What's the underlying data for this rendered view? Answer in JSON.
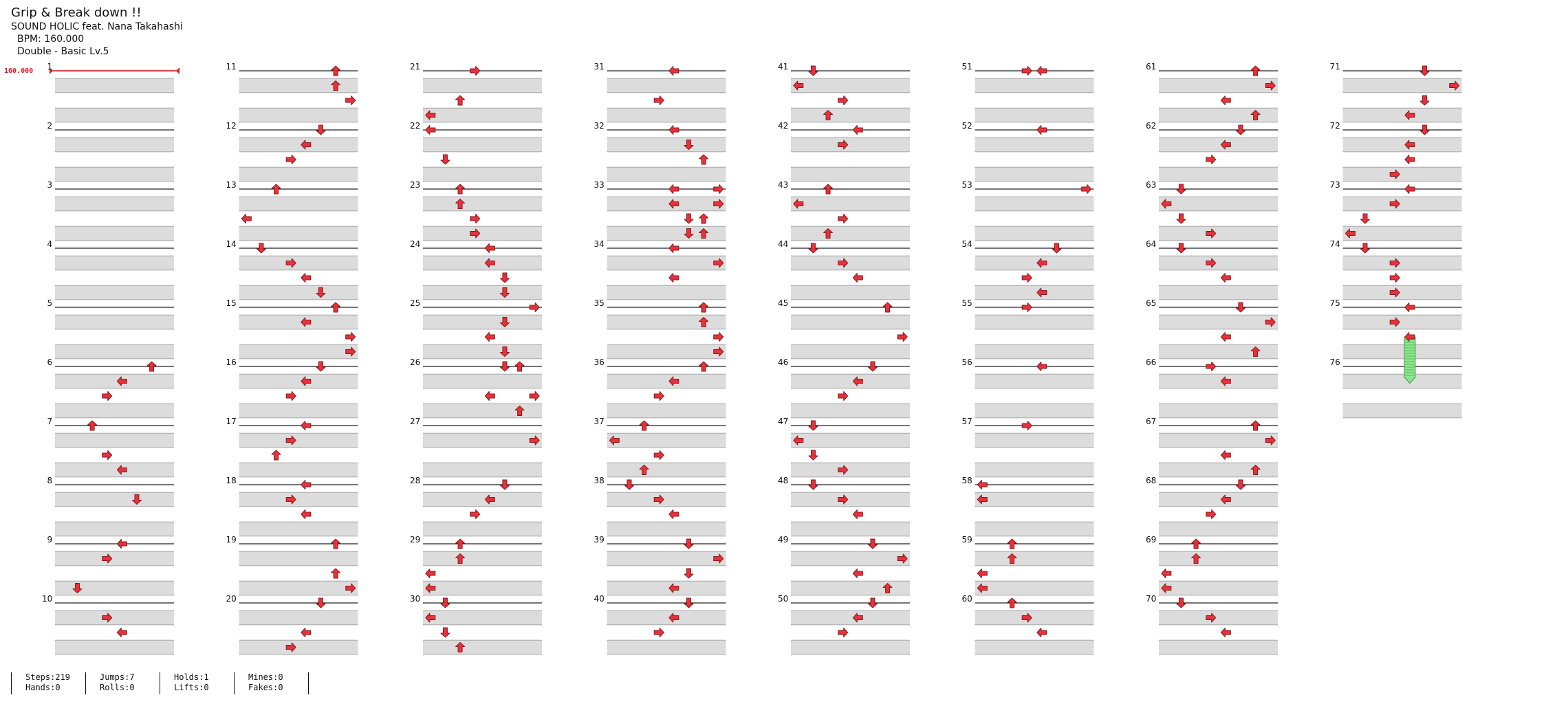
{
  "song": {
    "title": "Grip & Break down !!",
    "artist": "SOUND HOLIC feat. Nana Takahashi",
    "bpm_text": "BPM: 160.000",
    "chart_type": "Double - Basic  Lv.5"
  },
  "bpm_marker": "160.000",
  "colors": {
    "arrow": "#e5323b",
    "arrow_outline": "#8a1a1f",
    "shade": "#dcdcdc",
    "hold": "#8ee68e",
    "hold_outline": "#3a9a3a",
    "bpm": "#e31b23"
  },
  "lanes": 8,
  "measure_numbers": [
    "1",
    "2",
    "3",
    "4",
    "5",
    "6",
    "7",
    "8",
    "9",
    "10",
    "11",
    "12",
    "13",
    "14",
    "15",
    "16",
    "17",
    "18",
    "19",
    "20",
    "21",
    "22",
    "23",
    "24",
    "25",
    "26",
    "27",
    "28",
    "29",
    "30",
    "31",
    "32",
    "33",
    "34",
    "35",
    "36",
    "37",
    "38",
    "39",
    "40",
    "41",
    "42",
    "43",
    "44",
    "45",
    "46",
    "47",
    "48",
    "49",
    "50",
    "51",
    "52",
    "53",
    "54",
    "55",
    "56",
    "57",
    "58",
    "59",
    "60",
    "61",
    "62",
    "63",
    "64",
    "65",
    "66",
    "67",
    "68",
    "69",
    "70",
    "71",
    "72",
    "73",
    "74",
    "75",
    "76"
  ],
  "notes": [
    {
      "m": 1,
      "r": 0,
      "l": []
    },
    {
      "m": 6,
      "r": 0,
      "l": [
        6
      ]
    },
    {
      "m": 6,
      "r": 1,
      "l": [
        4
      ]
    },
    {
      "m": 6,
      "r": 2,
      "l": [
        3
      ]
    },
    {
      "m": 7,
      "r": 0,
      "l": [
        2
      ]
    },
    {
      "m": 7,
      "r": 2,
      "l": [
        3
      ]
    },
    {
      "m": 7,
      "r": 3,
      "l": [
        4
      ]
    },
    {
      "m": 8,
      "r": 1,
      "l": [
        5
      ]
    },
    {
      "m": 9,
      "r": 0,
      "l": [
        4
      ]
    },
    {
      "m": 9,
      "r": 1,
      "l": [
        3
      ]
    },
    {
      "m": 9,
      "r": 3,
      "l": [
        1
      ]
    },
    {
      "m": 10,
      "r": 1,
      "l": [
        3
      ]
    },
    {
      "m": 10,
      "r": 2,
      "l": [
        4
      ]
    },
    {
      "m": 11,
      "r": 0,
      "l": [
        6
      ]
    },
    {
      "m": 11,
      "r": 1,
      "l": [
        6
      ]
    },
    {
      "m": 11,
      "r": 2,
      "l": [
        7
      ]
    },
    {
      "m": 12,
      "r": 0,
      "l": [
        5
      ]
    },
    {
      "m": 12,
      "r": 1,
      "l": [
        4
      ]
    },
    {
      "m": 12,
      "r": 2,
      "l": [
        3
      ]
    },
    {
      "m": 13,
      "r": 0,
      "l": [
        2
      ]
    },
    {
      "m": 13,
      "r": 2,
      "l": [
        0
      ]
    },
    {
      "m": 14,
      "r": 0,
      "l": [
        1
      ]
    },
    {
      "m": 14,
      "r": 1,
      "l": [
        3
      ]
    },
    {
      "m": 14,
      "r": 2,
      "l": [
        4
      ]
    },
    {
      "m": 14,
      "r": 3,
      "l": [
        5
      ]
    },
    {
      "m": 15,
      "r": 0,
      "l": [
        6
      ]
    },
    {
      "m": 15,
      "r": 1,
      "l": [
        4
      ]
    },
    {
      "m": 15,
      "r": 2,
      "l": [
        7
      ]
    },
    {
      "m": 15,
      "r": 3,
      "l": [
        7
      ]
    },
    {
      "m": 16,
      "r": 0,
      "l": [
        5
      ]
    },
    {
      "m": 16,
      "r": 1,
      "l": [
        4
      ]
    },
    {
      "m": 16,
      "r": 2,
      "l": [
        3
      ]
    },
    {
      "m": 17,
      "r": 0,
      "l": [
        4
      ]
    },
    {
      "m": 17,
      "r": 1,
      "l": [
        3
      ]
    },
    {
      "m": 17,
      "r": 2,
      "l": [
        2
      ]
    },
    {
      "m": 18,
      "r": 0,
      "l": [
        4
      ]
    },
    {
      "m": 18,
      "r": 1,
      "l": [
        3
      ]
    },
    {
      "m": 18,
      "r": 2,
      "l": [
        4
      ]
    },
    {
      "m": 19,
      "r": 0,
      "l": [
        6
      ]
    },
    {
      "m": 19,
      "r": 2,
      "l": [
        6
      ]
    },
    {
      "m": 19,
      "r": 3,
      "l": [
        7
      ]
    },
    {
      "m": 20,
      "r": 0,
      "l": [
        5
      ]
    },
    {
      "m": 20,
      "r": 2,
      "l": [
        4
      ]
    },
    {
      "m": 20,
      "r": 3,
      "l": [
        3
      ]
    },
    {
      "m": 21,
      "r": 0,
      "l": [
        3
      ]
    },
    {
      "m": 21,
      "r": 2,
      "l": [
        2
      ]
    },
    {
      "m": 21,
      "r": 3,
      "l": [
        0
      ]
    },
    {
      "m": 22,
      "r": 0,
      "l": [
        0
      ]
    },
    {
      "m": 22,
      "r": 2,
      "l": [
        1
      ]
    },
    {
      "m": 23,
      "r": 0,
      "l": [
        2
      ]
    },
    {
      "m": 23,
      "r": 1,
      "l": [
        2
      ]
    },
    {
      "m": 23,
      "r": 2,
      "l": [
        3
      ]
    },
    {
      "m": 23,
      "r": 3,
      "l": [
        3
      ]
    },
    {
      "m": 24,
      "r": 0,
      "l": [
        4
      ]
    },
    {
      "m": 24,
      "r": 1,
      "l": [
        4
      ]
    },
    {
      "m": 24,
      "r": 2,
      "l": [
        5
      ]
    },
    {
      "m": 24,
      "r": 3,
      "l": [
        5
      ]
    },
    {
      "m": 25,
      "r": 0,
      "l": [
        7
      ]
    },
    {
      "m": 25,
      "r": 1,
      "l": [
        5
      ]
    },
    {
      "m": 25,
      "r": 2,
      "l": [
        4
      ]
    },
    {
      "m": 25,
      "r": 3,
      "l": [
        5
      ]
    },
    {
      "m": 26,
      "r": 0,
      "l": [
        5,
        6
      ]
    },
    {
      "m": 26,
      "r": 2,
      "l": [
        4,
        7
      ]
    },
    {
      "m": 26,
      "r": 3,
      "l": [
        6
      ]
    },
    {
      "m": 27,
      "r": 1,
      "l": [
        7
      ]
    },
    {
      "m": 28,
      "r": 0,
      "l": [
        5
      ]
    },
    {
      "m": 28,
      "r": 1,
      "l": [
        4
      ]
    },
    {
      "m": 28,
      "r": 2,
      "l": [
        3
      ]
    },
    {
      "m": 29,
      "r": 0,
      "l": [
        2
      ]
    },
    {
      "m": 29,
      "r": 1,
      "l": [
        2
      ]
    },
    {
      "m": 29,
      "r": 2,
      "l": [
        0
      ]
    },
    {
      "m": 29,
      "r": 3,
      "l": [
        0
      ]
    },
    {
      "m": 30,
      "r": 0,
      "l": [
        1
      ]
    },
    {
      "m": 30,
      "r": 1,
      "l": [
        0
      ]
    },
    {
      "m": 30,
      "r": 2,
      "l": [
        1
      ]
    },
    {
      "m": 30,
      "r": 3,
      "l": [
        2
      ]
    },
    {
      "m": 31,
      "r": 0,
      "l": [
        4
      ]
    },
    {
      "m": 31,
      "r": 2,
      "l": [
        3
      ]
    },
    {
      "m": 32,
      "r": 0,
      "l": [
        4
      ]
    },
    {
      "m": 32,
      "r": 1,
      "l": [
        5
      ]
    },
    {
      "m": 32,
      "r": 2,
      "l": [
        6
      ]
    },
    {
      "m": 33,
      "r": 0,
      "l": [
        4,
        7
      ]
    },
    {
      "m": 33,
      "r": 1,
      "l": [
        4,
        7
      ]
    },
    {
      "m": 33,
      "r": 2,
      "l": [
        5,
        6
      ]
    },
    {
      "m": 33,
      "r": 3,
      "l": [
        5,
        6
      ]
    },
    {
      "m": 34,
      "r": 0,
      "l": [
        4
      ]
    },
    {
      "m": 34,
      "r": 1,
      "l": [
        7
      ]
    },
    {
      "m": 34,
      "r": 2,
      "l": [
        4
      ]
    },
    {
      "m": 35,
      "r": 0,
      "l": [
        6
      ]
    },
    {
      "m": 35,
      "r": 1,
      "l": [
        6
      ]
    },
    {
      "m": 35,
      "r": 2,
      "l": [
        7
      ]
    },
    {
      "m": 35,
      "r": 3,
      "l": [
        7
      ]
    },
    {
      "m": 36,
      "r": 0,
      "l": [
        6
      ]
    },
    {
      "m": 36,
      "r": 1,
      "l": [
        4
      ]
    },
    {
      "m": 36,
      "r": 2,
      "l": [
        3
      ]
    },
    {
      "m": 37,
      "r": 0,
      "l": [
        2
      ]
    },
    {
      "m": 37,
      "r": 1,
      "l": [
        0
      ]
    },
    {
      "m": 37,
      "r": 2,
      "l": [
        3
      ]
    },
    {
      "m": 37,
      "r": 3,
      "l": [
        2
      ]
    },
    {
      "m": 38,
      "r": 0,
      "l": [
        1
      ]
    },
    {
      "m": 38,
      "r": 1,
      "l": [
        3
      ]
    },
    {
      "m": 38,
      "r": 2,
      "l": [
        4
      ]
    },
    {
      "m": 39,
      "r": 0,
      "l": [
        5
      ]
    },
    {
      "m": 39,
      "r": 1,
      "l": [
        7
      ]
    },
    {
      "m": 39,
      "r": 2,
      "l": [
        5
      ]
    },
    {
      "m": 39,
      "r": 3,
      "l": [
        4
      ]
    },
    {
      "m": 40,
      "r": 0,
      "l": [
        5
      ]
    },
    {
      "m": 40,
      "r": 1,
      "l": [
        4
      ]
    },
    {
      "m": 40,
      "r": 2,
      "l": [
        3
      ]
    },
    {
      "m": 41,
      "r": 0,
      "l": [
        1
      ]
    },
    {
      "m": 41,
      "r": 1,
      "l": [
        0
      ]
    },
    {
      "m": 41,
      "r": 2,
      "l": [
        3
      ]
    },
    {
      "m": 41,
      "r": 3,
      "l": [
        2
      ]
    },
    {
      "m": 42,
      "r": 0,
      "l": [
        4
      ]
    },
    {
      "m": 42,
      "r": 1,
      "l": [
        3
      ]
    },
    {
      "m": 43,
      "r": 0,
      "l": [
        2
      ]
    },
    {
      "m": 43,
      "r": 1,
      "l": [
        0
      ]
    },
    {
      "m": 43,
      "r": 2,
      "l": [
        3
      ]
    },
    {
      "m": 43,
      "r": 3,
      "l": [
        2
      ]
    },
    {
      "m": 44,
      "r": 0,
      "l": [
        1
      ]
    },
    {
      "m": 44,
      "r": 1,
      "l": [
        3
      ]
    },
    {
      "m": 44,
      "r": 2,
      "l": [
        4
      ]
    },
    {
      "m": 45,
      "r": 0,
      "l": [
        6
      ]
    },
    {
      "m": 45,
      "r": 2,
      "l": [
        7
      ]
    },
    {
      "m": 46,
      "r": 0,
      "l": [
        5
      ]
    },
    {
      "m": 46,
      "r": 1,
      "l": [
        4
      ]
    },
    {
      "m": 46,
      "r": 2,
      "l": [
        3
      ]
    },
    {
      "m": 47,
      "r": 0,
      "l": [
        1
      ]
    },
    {
      "m": 47,
      "r": 1,
      "l": [
        0
      ]
    },
    {
      "m": 47,
      "r": 2,
      "l": [
        1
      ]
    },
    {
      "m": 47,
      "r": 3,
      "l": [
        3
      ]
    },
    {
      "m": 48,
      "r": 0,
      "l": [
        1
      ]
    },
    {
      "m": 48,
      "r": 1,
      "l": [
        3
      ]
    },
    {
      "m": 48,
      "r": 2,
      "l": [
        4
      ]
    },
    {
      "m": 49,
      "r": 0,
      "l": [
        5
      ]
    },
    {
      "m": 49,
      "r": 1,
      "l": [
        7
      ]
    },
    {
      "m": 49,
      "r": 2,
      "l": [
        4
      ]
    },
    {
      "m": 49,
      "r": 3,
      "l": [
        6
      ]
    },
    {
      "m": 50,
      "r": 0,
      "l": [
        5
      ]
    },
    {
      "m": 50,
      "r": 1,
      "l": [
        4
      ]
    },
    {
      "m": 50,
      "r": 2,
      "l": [
        3
      ]
    },
    {
      "m": 51,
      "r": 0,
      "l": [
        3,
        4
      ]
    },
    {
      "m": 52,
      "r": 0,
      "l": [
        4
      ]
    },
    {
      "m": 53,
      "r": 0,
      "l": [
        7
      ]
    },
    {
      "m": 54,
      "r": 0,
      "l": [
        5
      ]
    },
    {
      "m": 54,
      "r": 1,
      "l": [
        4
      ]
    },
    {
      "m": 54,
      "r": 2,
      "l": [
        3
      ]
    },
    {
      "m": 54,
      "r": 3,
      "l": [
        4
      ]
    },
    {
      "m": 55,
      "r": 0,
      "l": [
        3
      ]
    },
    {
      "m": 56,
      "r": 0,
      "l": [
        4
      ]
    },
    {
      "m": 57,
      "r": 0,
      "l": [
        3
      ]
    },
    {
      "m": 58,
      "r": 0,
      "l": [
        0
      ]
    },
    {
      "m": 58,
      "r": 1,
      "l": [
        0
      ]
    },
    {
      "m": 59,
      "r": 0,
      "l": [
        2
      ]
    },
    {
      "m": 59,
      "r": 1,
      "l": [
        2
      ]
    },
    {
      "m": 59,
      "r": 2,
      "l": [
        0
      ]
    },
    {
      "m": 59,
      "r": 3,
      "l": [
        0
      ]
    },
    {
      "m": 60,
      "r": 0,
      "l": [
        2
      ]
    },
    {
      "m": 60,
      "r": 1,
      "l": [
        3
      ]
    },
    {
      "m": 60,
      "r": 2,
      "l": [
        4
      ]
    },
    {
      "m": 61,
      "r": 0,
      "l": [
        6
      ]
    },
    {
      "m": 61,
      "r": 1,
      "l": [
        7
      ]
    },
    {
      "m": 61,
      "r": 2,
      "l": [
        4
      ]
    },
    {
      "m": 61,
      "r": 3,
      "l": [
        6
      ]
    },
    {
      "m": 62,
      "r": 0,
      "l": [
        5
      ]
    },
    {
      "m": 62,
      "r": 1,
      "l": [
        4
      ]
    },
    {
      "m": 62,
      "r": 2,
      "l": [
        3
      ]
    },
    {
      "m": 63,
      "r": 0,
      "l": [
        1
      ]
    },
    {
      "m": 63,
      "r": 1,
      "l": [
        0
      ]
    },
    {
      "m": 63,
      "r": 2,
      "l": [
        1
      ]
    },
    {
      "m": 63,
      "r": 3,
      "l": [
        3
      ]
    },
    {
      "m": 64,
      "r": 0,
      "l": [
        1
      ]
    },
    {
      "m": 64,
      "r": 1,
      "l": [
        3
      ]
    },
    {
      "m": 64,
      "r": 2,
      "l": [
        4
      ]
    },
    {
      "m": 65,
      "r": 0,
      "l": [
        5
      ]
    },
    {
      "m": 65,
      "r": 1,
      "l": [
        7
      ]
    },
    {
      "m": 65,
      "r": 2,
      "l": [
        4
      ]
    },
    {
      "m": 65,
      "r": 3,
      "l": [
        6
      ]
    },
    {
      "m": 66,
      "r": 0,
      "l": [
        3
      ]
    },
    {
      "m": 66,
      "r": 1,
      "l": [
        4
      ]
    },
    {
      "m": 67,
      "r": 0,
      "l": [
        6
      ]
    },
    {
      "m": 67,
      "r": 1,
      "l": [
        7
      ]
    },
    {
      "m": 67,
      "r": 2,
      "l": [
        4
      ]
    },
    {
      "m": 67,
      "r": 3,
      "l": [
        6
      ]
    },
    {
      "m": 68,
      "r": 0,
      "l": [
        5
      ]
    },
    {
      "m": 68,
      "r": 1,
      "l": [
        4
      ]
    },
    {
      "m": 68,
      "r": 2,
      "l": [
        3
      ]
    },
    {
      "m": 69,
      "r": 0,
      "l": [
        2
      ]
    },
    {
      "m": 69,
      "r": 1,
      "l": [
        2
      ]
    },
    {
      "m": 69,
      "r": 2,
      "l": [
        0
      ]
    },
    {
      "m": 69,
      "r": 3,
      "l": [
        0
      ]
    },
    {
      "m": 70,
      "r": 0,
      "l": [
        1
      ]
    },
    {
      "m": 70,
      "r": 1,
      "l": [
        3
      ]
    },
    {
      "m": 70,
      "r": 2,
      "l": [
        4
      ]
    },
    {
      "m": 71,
      "r": 0,
      "l": [
        5
      ]
    },
    {
      "m": 71,
      "r": 1,
      "l": [
        7
      ]
    },
    {
      "m": 71,
      "r": 2,
      "l": [
        5
      ]
    },
    {
      "m": 71,
      "r": 3,
      "l": [
        4
      ]
    },
    {
      "m": 72,
      "r": 0,
      "l": [
        5
      ]
    },
    {
      "m": 72,
      "r": 1,
      "l": [
        4
      ]
    },
    {
      "m": 72,
      "r": 2,
      "l": [
        4
      ]
    },
    {
      "m": 72,
      "r": 3,
      "l": [
        3
      ]
    },
    {
      "m": 73,
      "r": 0,
      "l": [
        4
      ]
    },
    {
      "m": 73,
      "r": 1,
      "l": [
        3
      ]
    },
    {
      "m": 73,
      "r": 2,
      "l": [
        1
      ]
    },
    {
      "m": 73,
      "r": 3,
      "l": [
        0
      ]
    },
    {
      "m": 74,
      "r": 0,
      "l": [
        1
      ]
    },
    {
      "m": 74,
      "r": 1,
      "l": [
        3
      ]
    },
    {
      "m": 74,
      "r": 2,
      "l": [
        3
      ]
    },
    {
      "m": 74,
      "r": 3,
      "l": [
        3
      ]
    },
    {
      "m": 75,
      "r": 0,
      "l": [
        4
      ]
    },
    {
      "m": 75,
      "r": 1,
      "l": [
        3
      ]
    },
    {
      "m": 75,
      "r": 2,
      "l": [
        4
      ]
    }
  ],
  "holds": [
    {
      "m": 75,
      "r": 2,
      "lane": 4,
      "end_m": 76,
      "end_r": 1
    }
  ],
  "stats": {
    "steps": "Steps:219",
    "hands": "Hands:0",
    "jumps": "Jumps:7",
    "rolls": "Rolls:0",
    "holds": "Holds:1",
    "lifts": "Lifts:0",
    "mines": "Mines:0",
    "fakes": "Fakes:0"
  }
}
